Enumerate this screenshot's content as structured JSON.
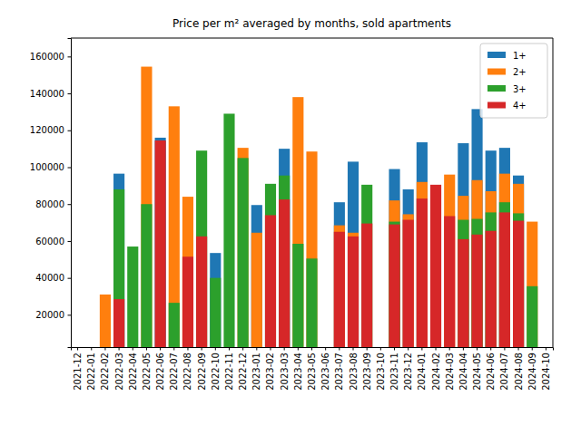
{
  "chart_data": {
    "type": "bar",
    "title": "Price per m² averaged by months, sold apartments",
    "categories": [
      "2021-12",
      "2022-01",
      "2022-02",
      "2022-03",
      "2022-04",
      "2022-05",
      "2022-06",
      "2022-07",
      "2022-08",
      "2022-09",
      "2022-10",
      "2022-11",
      "2022-12",
      "2023-01",
      "2023-02",
      "2023-03",
      "2023-04",
      "2023-05",
      "2023-06",
      "2023-07",
      "2023-08",
      "2023-09",
      "2023-10",
      "2023-11",
      "2023-12",
      "2024-01",
      "2024-02",
      "2024-03",
      "2024-04",
      "2024-05",
      "2024-06",
      "2024-07",
      "2024-08",
      "2024-09",
      "2024-10"
    ],
    "series": [
      {
        "name": "1+",
        "color": "#1f77b4",
        "values": [
          null,
          null,
          null,
          96500,
          null,
          null,
          116000,
          null,
          null,
          null,
          53500,
          null,
          null,
          79500,
          null,
          110000,
          null,
          null,
          null,
          81000,
          103000,
          null,
          null,
          99000,
          88000,
          113500,
          null,
          null,
          113000,
          131500,
          109000,
          110500,
          95500,
          null,
          null
        ]
      },
      {
        "name": "2+",
        "color": "#ff7f0e",
        "values": [
          null,
          null,
          31000,
          null,
          null,
          154500,
          null,
          133000,
          84000,
          null,
          null,
          null,
          110500,
          64500,
          null,
          null,
          138000,
          108500,
          null,
          68500,
          64500,
          null,
          null,
          82000,
          74500,
          92000,
          null,
          96000,
          84500,
          93000,
          87000,
          96500,
          91000,
          70500,
          null
        ]
      },
      {
        "name": "3+",
        "color": "#2ca02c",
        "values": [
          null,
          null,
          null,
          88000,
          57000,
          80000,
          null,
          26500,
          null,
          109000,
          40000,
          129000,
          105000,
          null,
          91000,
          95500,
          58500,
          50500,
          null,
          null,
          null,
          90500,
          null,
          70500,
          null,
          null,
          null,
          null,
          71500,
          72000,
          75500,
          81000,
          75000,
          35500,
          null
        ]
      },
      {
        "name": "4+",
        "color": "#d62728",
        "values": [
          null,
          null,
          null,
          28500,
          null,
          null,
          114500,
          null,
          51500,
          62500,
          null,
          null,
          null,
          null,
          74000,
          82500,
          null,
          null,
          null,
          65000,
          62500,
          69500,
          null,
          69000,
          71500,
          83000,
          90500,
          73500,
          61000,
          63500,
          65500,
          75500,
          71000,
          null,
          null
        ]
      }
    ],
    "ylim": [
      2500,
      170000
    ],
    "yticks": [
      20000,
      40000,
      60000,
      80000,
      100000,
      120000,
      140000,
      160000
    ],
    "grid": false,
    "stacked": false,
    "legend": "upper right"
  }
}
